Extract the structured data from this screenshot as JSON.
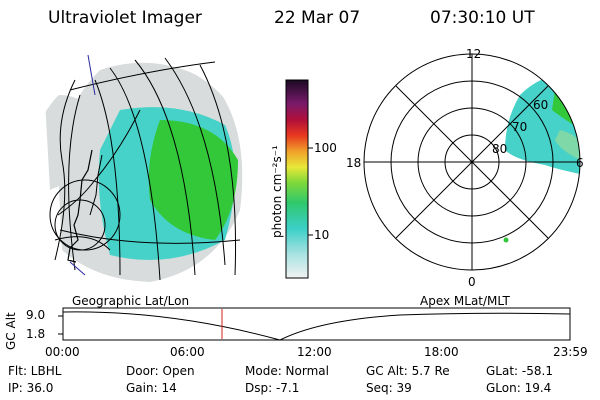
{
  "header": {
    "instrument": "Ultraviolet Imager",
    "date": "22 Mar 07",
    "time": "07:30:10 UT"
  },
  "colorbar": {
    "label": "photon cm⁻²s⁻¹",
    "ticks": [
      "100",
      "10"
    ]
  },
  "panels": {
    "left_label": "Geographic Lat/Lon",
    "right_label": "Apex MLat/MLT"
  },
  "polar": {
    "mlt_labels": {
      "top": "12",
      "left": "18",
      "right": "6",
      "bottom": "0"
    },
    "lat_labels": [
      "60",
      "70",
      "80"
    ]
  },
  "altitude_plot": {
    "ylabel": "GC Alt",
    "y_ticks": [
      "9.0",
      "1.8"
    ],
    "x_ticks": [
      "00:00",
      "06:00",
      "12:00",
      "18:00",
      "23:59"
    ],
    "marker_time": "07:30"
  },
  "status": {
    "flt": "Flt: LBHL",
    "door": "Door: Open",
    "mode": "Mode: Normal",
    "gcalt": "GC Alt: 5.7 Re",
    "glat": "GLat: -58.1",
    "ip": "IP: 36.0",
    "gain": "Gain: 14",
    "dsp": "Dsp:   -7.1",
    "seq": "Seq: 39",
    "glon": "GLon:  19.4"
  },
  "colors": {
    "cyan": "#46d2c8",
    "green": "#33c73a",
    "lightgray": "#d8dcdc",
    "red_marker": "#d81e1e"
  }
}
